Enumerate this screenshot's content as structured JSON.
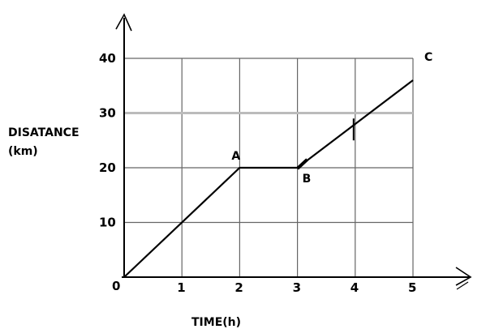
{
  "chart_data": {
    "type": "line",
    "x": [
      0,
      2,
      3,
      5
    ],
    "series": [
      {
        "values": [
          0,
          20,
          20,
          36
        ]
      }
    ],
    "point_labels": [
      "",
      "A",
      "B",
      ""
    ],
    "end_label": "C",
    "xlabel": "TIME(h)",
    "ylabel_lines": [
      "DISATANCE",
      "(km)"
    ],
    "origin_label": "0",
    "xticks": [
      1,
      2,
      3,
      4,
      5
    ],
    "yticks": [
      10,
      20,
      30,
      40
    ],
    "xlim": [
      0,
      5
    ],
    "ylim": [
      0,
      40
    ],
    "grid": true,
    "colors": {
      "line": "#000000",
      "grid": "#666666",
      "grid_30": "#bbbbbb"
    }
  }
}
